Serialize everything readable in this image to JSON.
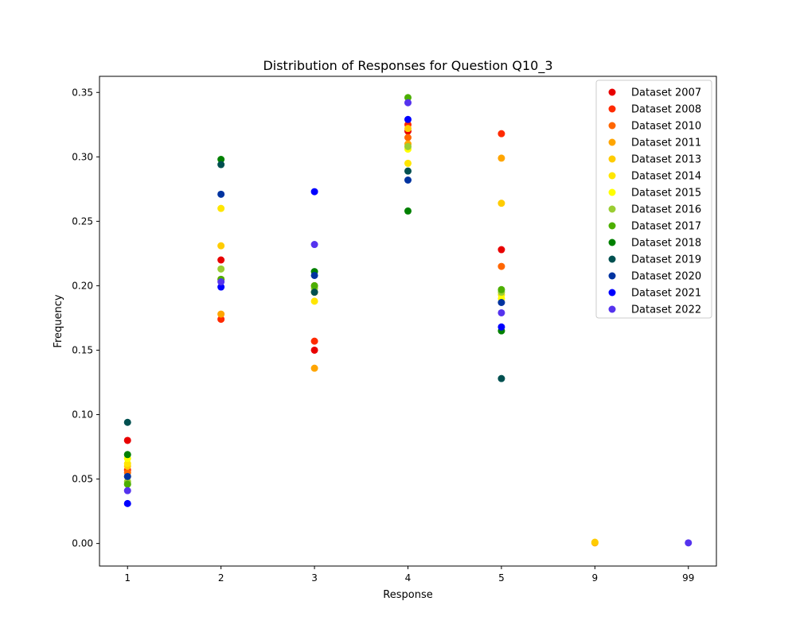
{
  "chart_data": {
    "type": "scatter",
    "title": "Distribution of Responses for Question Q10_3",
    "xlabel": "Response",
    "ylabel": "Frequency",
    "categories": [
      "1",
      "2",
      "3",
      "4",
      "5",
      "9",
      "99"
    ],
    "ylim": [
      -0.0175,
      0.3625
    ],
    "yticks": [
      "0.00",
      "0.05",
      "0.10",
      "0.15",
      "0.20",
      "0.25",
      "0.30",
      "0.35"
    ],
    "grid": false,
    "legend_position": "upper right",
    "series": [
      {
        "name": "Dataset 2007",
        "color": "#e80000",
        "points": [
          [
            "1",
            0.08
          ],
          [
            "2",
            0.22
          ],
          [
            "3",
            0.15
          ],
          [
            "4",
            0.32
          ],
          [
            "5",
            0.228
          ]
        ]
      },
      {
        "name": "Dataset 2008",
        "color": "#ff2a00",
        "points": [
          [
            "1",
            0.057
          ],
          [
            "2",
            0.174
          ],
          [
            "3",
            0.157
          ],
          [
            "4",
            0.325
          ],
          [
            "5",
            0.318
          ]
        ]
      },
      {
        "name": "Dataset 2010",
        "color": "#ff6600",
        "points": [
          [
            "1",
            0.055
          ],
          [
            "2",
            0.205
          ],
          [
            "3",
            0.2
          ],
          [
            "4",
            0.315
          ],
          [
            "5",
            0.215
          ]
        ]
      },
      {
        "name": "Dataset 2011",
        "color": "#ffa500",
        "points": [
          [
            "1",
            0.052
          ],
          [
            "2",
            0.178
          ],
          [
            "3",
            0.136
          ],
          [
            "4",
            0.31
          ],
          [
            "5",
            0.299
          ],
          [
            "9",
            0.0005
          ]
        ]
      },
      {
        "name": "Dataset 2013",
        "color": "#ffcc00",
        "points": [
          [
            "1",
            0.06
          ],
          [
            "2",
            0.231
          ],
          [
            "3",
            0.195
          ],
          [
            "4",
            0.322
          ],
          [
            "5",
            0.264
          ],
          [
            "9",
            0.001
          ]
        ]
      },
      {
        "name": "Dataset 2014",
        "color": "#ffe600",
        "points": [
          [
            "1",
            0.062
          ],
          [
            "2",
            0.26
          ],
          [
            "3",
            0.188
          ],
          [
            "4",
            0.295
          ],
          [
            "5",
            0.193
          ]
        ]
      },
      {
        "name": "Dataset 2015",
        "color": "#ffff00",
        "points": [
          [
            "1",
            0.066
          ],
          [
            "2",
            0.205
          ],
          [
            "3",
            0.195
          ],
          [
            "4",
            0.306
          ],
          [
            "5",
            0.19
          ]
        ]
      },
      {
        "name": "Dataset 2016",
        "color": "#9acd32",
        "points": [
          [
            "1",
            0.048
          ],
          [
            "2",
            0.213
          ],
          [
            "3",
            0.198
          ],
          [
            "4",
            0.308
          ],
          [
            "5",
            0.195
          ]
        ]
      },
      {
        "name": "Dataset 2017",
        "color": "#4caf00",
        "points": [
          [
            "1",
            0.046
          ],
          [
            "2",
            0.205
          ],
          [
            "3",
            0.2
          ],
          [
            "4",
            0.346
          ],
          [
            "5",
            0.197
          ]
        ]
      },
      {
        "name": "Dataset 2018",
        "color": "#008000",
        "points": [
          [
            "1",
            0.069
          ],
          [
            "2",
            0.298
          ],
          [
            "3",
            0.211
          ],
          [
            "4",
            0.258
          ],
          [
            "5",
            0.165
          ]
        ]
      },
      {
        "name": "Dataset 2019",
        "color": "#005050",
        "points": [
          [
            "1",
            0.094
          ],
          [
            "2",
            0.294
          ],
          [
            "3",
            0.195
          ],
          [
            "4",
            0.289
          ],
          [
            "5",
            0.128
          ]
        ]
      },
      {
        "name": "Dataset 2020",
        "color": "#0033a0",
        "points": [
          [
            "1",
            0.052
          ],
          [
            "2",
            0.271
          ],
          [
            "3",
            0.208
          ],
          [
            "4",
            0.282
          ],
          [
            "5",
            0.187
          ]
        ]
      },
      {
        "name": "Dataset 2021",
        "color": "#0000ff",
        "points": [
          [
            "1",
            0.031
          ],
          [
            "2",
            0.199
          ],
          [
            "3",
            0.273
          ],
          [
            "4",
            0.329
          ],
          [
            "5",
            0.168
          ]
        ]
      },
      {
        "name": "Dataset 2022",
        "color": "#5533ee",
        "points": [
          [
            "1",
            0.041
          ],
          [
            "2",
            0.203
          ],
          [
            "3",
            0.232
          ],
          [
            "4",
            0.342
          ],
          [
            "5",
            0.179
          ],
          [
            "99",
            0.0005
          ]
        ]
      }
    ]
  }
}
